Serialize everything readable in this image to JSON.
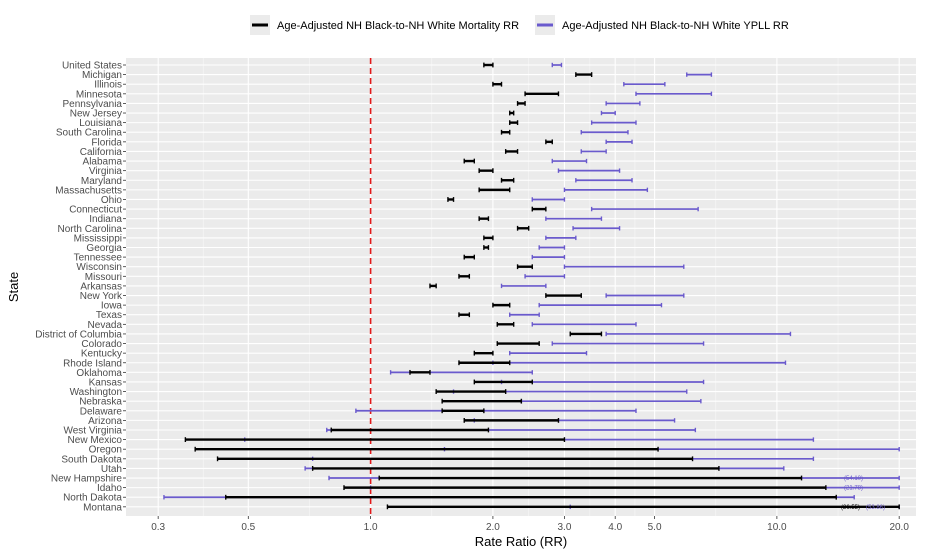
{
  "chart_data": {
    "type": "forest",
    "xlabel": "Rate Ratio (RR)",
    "ylabel": "State",
    "x_scale": "log",
    "xlim": [
      0.25,
      22
    ],
    "x_ticks": [
      0.3,
      0.5,
      1.0,
      2.0,
      3.0,
      4.0,
      5.0,
      10.0,
      20.0
    ],
    "x_tick_labels": [
      "0.3",
      "0.5",
      "1.0",
      "2.0",
      "3.0",
      "4.0",
      "5.0",
      "10.0",
      "20.0"
    ],
    "reference_line": 1.0,
    "reference_color": "#e31a1c",
    "legend_position": "top",
    "series": [
      {
        "key": "mort",
        "name": "Age-Adjusted NH Black-to-NH White Mortality RR",
        "color": "#000000"
      },
      {
        "key": "ypll",
        "name": "Age-Adjusted NH Black-to-NH White YPLL RR",
        "color": "#6a5acd"
      }
    ],
    "states": [
      "United States",
      "Michigan",
      "Illinois",
      "Minnesota",
      "Pennsylvania",
      "New Jersey",
      "Louisiana",
      "South Carolina",
      "Florida",
      "California",
      "Alabama",
      "Virginia",
      "Maryland",
      "Massachusetts",
      "Ohio",
      "Connecticut",
      "Indiana",
      "North Carolina",
      "Mississippi",
      "Georgia",
      "Tennessee",
      "Wisconsin",
      "Missouri",
      "Arkansas",
      "New York",
      "Iowa",
      "Texas",
      "Nevada",
      "District of Columbia",
      "Colorado",
      "Kentucky",
      "Rhode Island",
      "Oklahoma",
      "Kansas",
      "Washington",
      "Nebraska",
      "Delaware",
      "Arizona",
      "West Virginia",
      "New Mexico",
      "Oregon",
      "South Dakota",
      "Utah",
      "New Hampshire",
      "Idaho",
      "North Dakota",
      "Montana"
    ],
    "intervals": {
      "mort": [
        [
          1.9,
          2.0
        ],
        [
          3.2,
          3.5
        ],
        [
          2.0,
          2.1
        ],
        [
          2.4,
          2.9
        ],
        [
          2.3,
          2.4
        ],
        [
          2.2,
          2.25
        ],
        [
          2.2,
          2.3
        ],
        [
          2.1,
          2.2
        ],
        [
          2.7,
          2.8
        ],
        [
          2.15,
          2.3
        ],
        [
          1.7,
          1.8
        ],
        [
          1.85,
          2.0
        ],
        [
          2.1,
          2.25
        ],
        [
          1.85,
          2.2
        ],
        [
          1.55,
          1.6
        ],
        [
          2.5,
          2.7
        ],
        [
          1.85,
          1.95
        ],
        [
          2.3,
          2.45
        ],
        [
          1.9,
          2.0
        ],
        [
          1.9,
          1.95
        ],
        [
          1.7,
          1.8
        ],
        [
          2.3,
          2.5
        ],
        [
          1.65,
          1.75
        ],
        [
          1.4,
          1.45
        ],
        [
          2.7,
          3.3
        ],
        [
          2.0,
          2.2
        ],
        [
          1.65,
          1.75
        ],
        [
          2.05,
          2.25
        ],
        [
          3.1,
          3.7
        ],
        [
          2.05,
          2.6
        ],
        [
          1.8,
          2.0
        ],
        [
          1.65,
          2.2
        ],
        [
          1.25,
          1.4
        ],
        [
          1.8,
          2.5
        ],
        [
          1.45,
          2.15
        ],
        [
          1.5,
          2.35
        ],
        [
          1.5,
          1.9
        ],
        [
          1.7,
          2.9
        ],
        [
          0.8,
          1.95
        ],
        [
          0.35,
          3.0
        ],
        [
          0.37,
          5.1
        ],
        [
          0.42,
          6.2
        ],
        [
          0.72,
          7.2
        ],
        [
          1.05,
          11.5
        ],
        [
          0.86,
          13.2
        ],
        [
          0.44,
          14.0
        ],
        [
          1.1,
          20.0
        ]
      ],
      "ypll": [
        [
          2.8,
          2.95
        ],
        [
          6.0,
          6.9
        ],
        [
          4.2,
          5.3
        ],
        [
          4.5,
          6.9
        ],
        [
          3.8,
          4.6
        ],
        [
          3.7,
          4.0
        ],
        [
          3.5,
          4.5
        ],
        [
          3.3,
          4.3
        ],
        [
          3.8,
          4.4
        ],
        [
          3.3,
          3.8
        ],
        [
          2.8,
          3.4
        ],
        [
          2.9,
          4.1
        ],
        [
          3.2,
          4.4
        ],
        [
          3.0,
          4.8
        ],
        [
          2.5,
          3.0
        ],
        [
          3.5,
          6.4
        ],
        [
          2.7,
          3.7
        ],
        [
          3.15,
          4.1
        ],
        [
          2.7,
          3.2
        ],
        [
          2.6,
          3.0
        ],
        [
          2.5,
          3.0
        ],
        [
          3.0,
          5.9
        ],
        [
          2.4,
          3.0
        ],
        [
          2.1,
          2.7
        ],
        [
          3.8,
          5.9
        ],
        [
          2.6,
          5.2
        ],
        [
          2.2,
          2.6
        ],
        [
          2.5,
          4.5
        ],
        [
          3.8,
          10.8
        ],
        [
          2.8,
          6.6
        ],
        [
          2.2,
          3.4
        ],
        [
          2.0,
          10.5
        ],
        [
          1.12,
          2.5
        ],
        [
          2.1,
          6.6
        ],
        [
          1.6,
          6.0
        ],
        [
          2.35,
          6.5
        ],
        [
          0.92,
          4.5
        ],
        [
          1.8,
          5.6
        ],
        [
          0.78,
          6.3
        ],
        [
          0.49,
          12.3
        ],
        [
          1.52,
          20.0
        ],
        [
          0.72,
          12.3
        ],
        [
          0.69,
          10.4
        ],
        [
          0.79,
          20.0
        ],
        [
          1.0,
          20.0
        ],
        [
          0.31,
          15.5
        ],
        [
          3.1,
          20.0
        ]
      ]
    },
    "clipped_labels": [
      {
        "state": "New Hampshire",
        "series": "ypll",
        "text": "(54.10)"
      },
      {
        "state": "Idaho",
        "series": "ypll",
        "text": "(21.78)"
      },
      {
        "state": "Montana",
        "series": "mort",
        "text": "(26.55)"
      },
      {
        "state": "Montana",
        "series": "ypll",
        "text": "(53.86)"
      }
    ]
  }
}
